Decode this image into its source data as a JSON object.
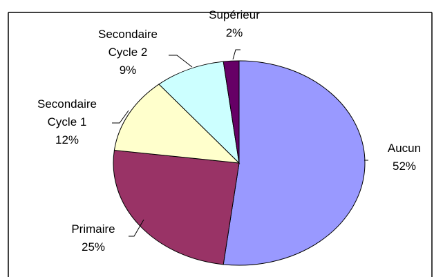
{
  "chart_data": {
    "type": "pie",
    "categories": [
      "Aucun",
      "Primaire",
      "Secondaire Cycle 1",
      "Secondaire Cycle 2",
      "Supérieur"
    ],
    "values": [
      52,
      25,
      12,
      9,
      2
    ],
    "value_labels": [
      "52%",
      "25%",
      "12%",
      "9%",
      "2%"
    ],
    "colors": [
      "#9999ff",
      "#993366",
      "#ffffcc",
      "#ccffff",
      "#660066"
    ]
  }
}
